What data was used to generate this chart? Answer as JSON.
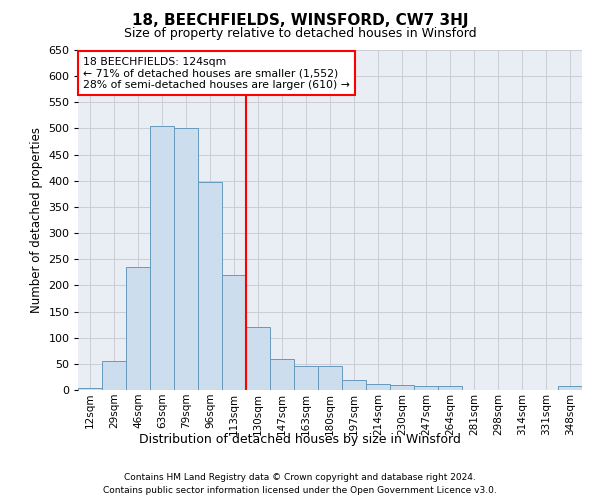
{
  "title": "18, BEECHFIELDS, WINSFORD, CW7 3HJ",
  "subtitle": "Size of property relative to detached houses in Winsford",
  "xlabel": "Distribution of detached houses by size in Winsford",
  "ylabel": "Number of detached properties",
  "footnote1": "Contains HM Land Registry data © Crown copyright and database right 2024.",
  "footnote2": "Contains public sector information licensed under the Open Government Licence v3.0.",
  "categories": [
    "12sqm",
    "29sqm",
    "46sqm",
    "63sqm",
    "79sqm",
    "96sqm",
    "113sqm",
    "130sqm",
    "147sqm",
    "163sqm",
    "180sqm",
    "197sqm",
    "214sqm",
    "230sqm",
    "247sqm",
    "264sqm",
    "281sqm",
    "298sqm",
    "314sqm",
    "331sqm",
    "348sqm"
  ],
  "values": [
    3,
    55,
    235,
    505,
    500,
    398,
    220,
    120,
    60,
    45,
    45,
    20,
    12,
    10,
    8,
    7,
    0,
    0,
    0,
    0,
    7
  ],
  "bar_color": "#ccdded",
  "bar_edge_color": "#6699bb",
  "grid_color": "#c8c8d0",
  "bg_color": "#e8eef4",
  "vline_index": 6,
  "annotation_line1": "18 BEECHFIELDS: 124sqm",
  "annotation_line2": "← 71% of detached houses are smaller (1,552)",
  "annotation_line3": "28% of semi-detached houses are larger (610) →",
  "ylim": [
    0,
    650
  ],
  "yticks": [
    0,
    50,
    100,
    150,
    200,
    250,
    300,
    350,
    400,
    450,
    500,
    550,
    600,
    650
  ]
}
